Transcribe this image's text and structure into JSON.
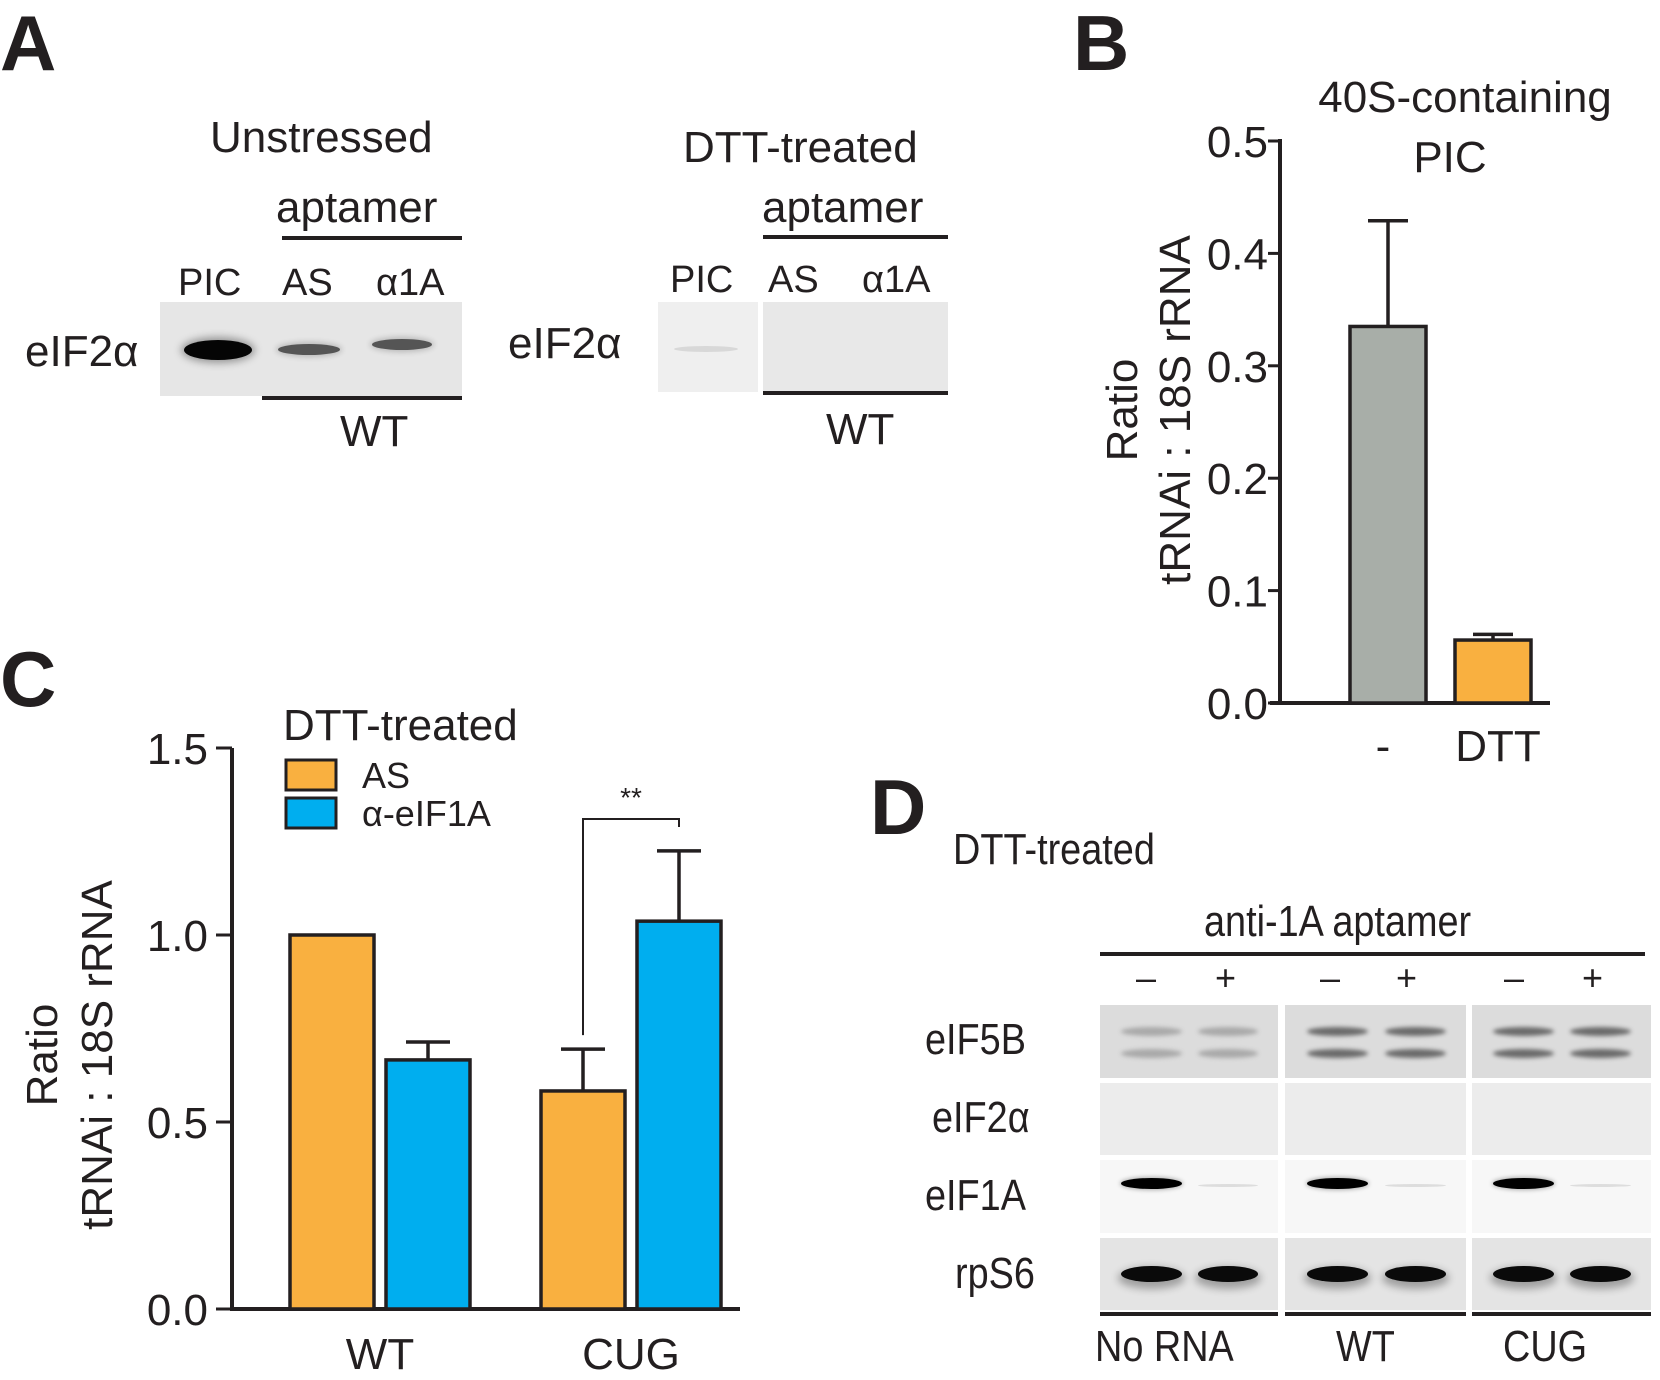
{
  "figure": {
    "panels": {
      "A": {
        "letter": "A",
        "unstressed": {
          "title": "Unstressed",
          "group_label": "aptamer",
          "lanes": [
            "PIC",
            "AS",
            "α1A"
          ],
          "row_label": "eIF2α",
          "bottom_label": "WT"
        },
        "dtt": {
          "title": "DTT-treated",
          "group_label": "aptamer",
          "lanes": [
            "PIC",
            "AS",
            "α1A"
          ],
          "row_label": "eIF2α",
          "bottom_label": "WT"
        }
      },
      "B": {
        "letter": "B"
      },
      "C": {
        "letter": "C"
      },
      "D": {
        "letter": "D",
        "title": "DTT-treated",
        "group_label": "anti-1A aptamer",
        "lane_signs": [
          "–",
          "+",
          "–",
          "+",
          "–",
          "+"
        ],
        "rows": [
          "eIF5B",
          "eIF2α",
          "eIF1A",
          "rpS6"
        ],
        "groups": [
          "No RNA",
          "WT",
          "CUG"
        ]
      }
    }
  },
  "chart_data": [
    {
      "id": "B",
      "type": "bar",
      "title": "40S-containing PIC",
      "xlabel": "",
      "ylabel_line1": "Ratio",
      "ylabel_line2": "tRNAi : 18S rRNA",
      "categories": [
        "-",
        "DTT"
      ],
      "values": [
        0.335,
        0.056
      ],
      "errors": [
        0.094,
        0.005
      ],
      "colors": [
        "#a8aea8",
        "#f9b040"
      ],
      "ylim": [
        0,
        0.5
      ],
      "yticks": [
        "0.0",
        "0.1",
        "0.2",
        "0.3",
        "0.4",
        "0.5"
      ],
      "ytick_values": [
        0,
        0.1,
        0.2,
        0.3,
        0.4,
        0.5
      ],
      "grid": false
    },
    {
      "id": "C",
      "type": "bar",
      "title": "",
      "legend_title": "DTT-treated",
      "legend_position": "top-left",
      "xlabel": "",
      "ylabel_line1": "Ratio",
      "ylabel_line2": "tRNAi : 18S rRNA",
      "categories": [
        "WT",
        "CUG"
      ],
      "series": [
        {
          "name": "AS",
          "color": "#f9b040",
          "values": [
            1.0,
            0.583
          ],
          "errors": [
            0,
            0.112
          ]
        },
        {
          "name": "α-eIF1A",
          "color": "#00aeef",
          "values": [
            0.666,
            1.037
          ],
          "errors": [
            0.048,
            0.188
          ]
        }
      ],
      "ylim": [
        0,
        1.5
      ],
      "yticks": [
        "0.0",
        "0.5",
        "1.0",
        "1.5"
      ],
      "ytick_values": [
        0,
        0.5,
        1.0,
        1.5
      ],
      "annotations": [
        {
          "text": "**",
          "between": [
            "CUG AS",
            "CUG α-eIF1A"
          ]
        }
      ],
      "grid": false
    }
  ]
}
